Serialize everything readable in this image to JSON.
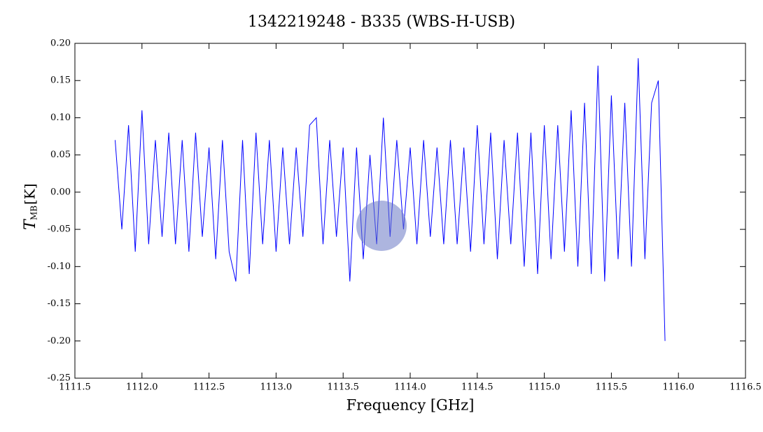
{
  "chart_data": {
    "type": "line",
    "title": "1342219248 - B335 (WBS-H-USB)",
    "x_label": "Frequency [GHz]",
    "y_label": {
      "symbol": "T",
      "subscript": "MB",
      "unit": "[K]"
    },
    "color": "#0000ff",
    "xlim": [
      1111.5,
      1116.5
    ],
    "ylim": [
      -0.25,
      0.2
    ],
    "xticks": [
      {
        "value": 1111.5,
        "label": "1111.5"
      },
      {
        "value": 1112,
        "label": "1112.0"
      },
      {
        "value": 1112.5,
        "label": "1112.5"
      },
      {
        "value": 1113,
        "label": "1113.0"
      },
      {
        "value": 1113.5,
        "label": "1113.5"
      },
      {
        "value": 1114,
        "label": "1114.0"
      },
      {
        "value": 1114.5,
        "label": "1114.5"
      },
      {
        "value": 1115,
        "label": "1115.0"
      },
      {
        "value": 1115.5,
        "label": "1115.5"
      },
      {
        "value": 1116,
        "label": "1116.0"
      },
      {
        "value": 1116.5,
        "label": "1116.5"
      }
    ],
    "yticks": [
      {
        "value": -0.25,
        "label": "-0.25"
      },
      {
        "value": -0.2,
        "label": "-0.20"
      },
      {
        "value": -0.15,
        "label": "-0.15"
      },
      {
        "value": -0.1,
        "label": "-0.10"
      },
      {
        "value": -0.05,
        "label": "-0.05"
      },
      {
        "value": 0,
        "label": "0.00"
      },
      {
        "value": 0.05,
        "label": "0.05"
      },
      {
        "value": 0.1,
        "label": "0.10"
      },
      {
        "value": 0.15,
        "label": "0.15"
      },
      {
        "value": 0.2,
        "label": "0.20"
      }
    ],
    "x": [
      1111.8,
      1111.85,
      1111.9,
      1111.95,
      1112.0,
      1112.05,
      1112.1,
      1112.15,
      1112.2,
      1112.25,
      1112.3,
      1112.35,
      1112.4,
      1112.45,
      1112.5,
      1112.55,
      1112.6,
      1112.65,
      1112.7,
      1112.75,
      1112.8,
      1112.85,
      1112.9,
      1112.95,
      1113.0,
      1113.05,
      1113.1,
      1113.15,
      1113.2,
      1113.25,
      1113.3,
      1113.35,
      1113.4,
      1113.45,
      1113.5,
      1113.55,
      1113.6,
      1113.65,
      1113.7,
      1113.75,
      1113.8,
      1113.85,
      1113.9,
      1113.95,
      1114.0,
      1114.05,
      1114.1,
      1114.15,
      1114.2,
      1114.25,
      1114.3,
      1114.35,
      1114.4,
      1114.45,
      1114.5,
      1114.55,
      1114.6,
      1114.65,
      1114.7,
      1114.75,
      1114.8,
      1114.85,
      1114.9,
      1114.95,
      1115.0,
      1115.05,
      1115.1,
      1115.15,
      1115.2,
      1115.25,
      1115.3,
      1115.35,
      1115.4,
      1115.45,
      1115.5,
      1115.55,
      1115.6,
      1115.65,
      1115.7,
      1115.75,
      1115.8,
      1115.85,
      1115.9
    ],
    "values": [
      0.07,
      -0.05,
      0.09,
      -0.08,
      0.11,
      -0.07,
      0.07,
      -0.06,
      0.08,
      -0.07,
      0.07,
      -0.08,
      0.08,
      -0.06,
      0.06,
      -0.09,
      0.07,
      -0.08,
      -0.12,
      0.07,
      -0.11,
      0.08,
      -0.07,
      0.07,
      -0.08,
      0.06,
      -0.07,
      0.06,
      -0.06,
      0.09,
      0.1,
      -0.07,
      0.07,
      -0.06,
      0.06,
      -0.12,
      0.06,
      -0.09,
      0.05,
      -0.07,
      0.1,
      -0.06,
      0.07,
      -0.05,
      0.06,
      -0.07,
      0.07,
      -0.06,
      0.06,
      -0.07,
      0.07,
      -0.07,
      0.06,
      -0.08,
      0.09,
      -0.07,
      0.08,
      -0.09,
      0.07,
      -0.07,
      0.08,
      -0.1,
      0.08,
      -0.11,
      0.09,
      -0.09,
      0.09,
      -0.08,
      0.11,
      -0.1,
      0.12,
      -0.11,
      0.17,
      -0.12,
      0.13,
      -0.09,
      0.12,
      -0.1,
      0.18,
      -0.09,
      0.12,
      0.15,
      -0.2
    ]
  }
}
